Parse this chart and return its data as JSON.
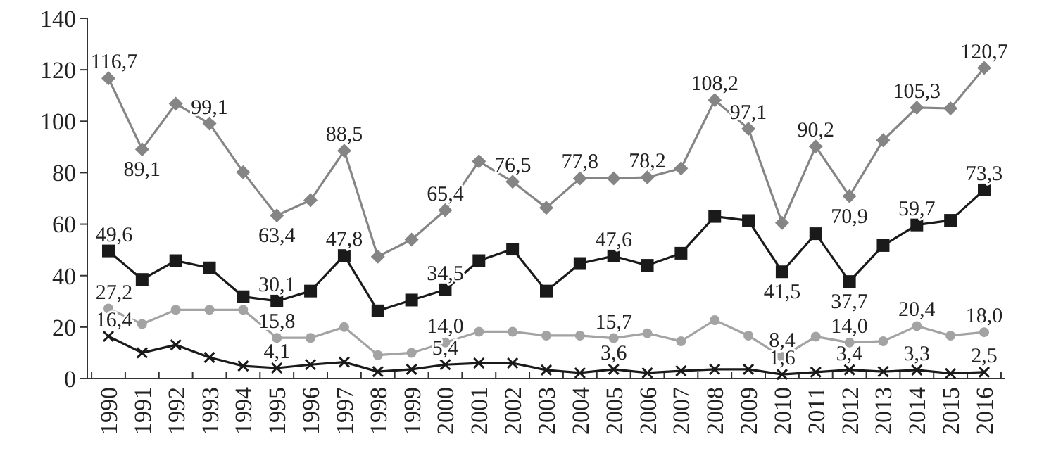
{
  "chart_data": {
    "type": "line",
    "categories": [
      "1990",
      "1991",
      "1992",
      "1993",
      "1994",
      "1995",
      "1996",
      "1997",
      "1998",
      "1999",
      "2000",
      "2001",
      "2002",
      "2003",
      "2004",
      "2005",
      "2006",
      "2007",
      "2008",
      "2009",
      "2010",
      "2011",
      "2012",
      "2013",
      "2014",
      "2015",
      "2016"
    ],
    "ylim": [
      0,
      140
    ],
    "yticks": [
      0,
      20,
      40,
      60,
      80,
      100,
      120,
      140
    ],
    "grid": false,
    "series": [
      {
        "color": "#858585",
        "marker": "diamond",
        "values": [
          116.7,
          89.1,
          106.8,
          99.1,
          80.2,
          63.4,
          69.3,
          88.5,
          47.4,
          54,
          65.4,
          84.4,
          76.5,
          66.4,
          77.8,
          77.8,
          78.2,
          81.7,
          108.2,
          97.1,
          60.5,
          90.2,
          70.9,
          92.6,
          105.3,
          105,
          120.7
        ],
        "value_labels": [
          "116,7",
          "89,1",
          null,
          "99,1",
          null,
          "63,4",
          null,
          "88,5",
          null,
          null,
          "65,4",
          null,
          "76,5",
          null,
          "77,8",
          null,
          "78,2",
          null,
          "108,2",
          "97,1",
          null,
          "90,2",
          "70,9",
          null,
          "105,3",
          null,
          "120,7"
        ]
      },
      {
        "color": "#1a1a1a",
        "marker": "square",
        "values": [
          49.6,
          38.5,
          45.8,
          43,
          31.8,
          30.1,
          34,
          47.8,
          26.3,
          30.5,
          34.5,
          45.8,
          50.3,
          34,
          44.7,
          47.6,
          44,
          48.7,
          63,
          61.4,
          41.5,
          56.3,
          37.7,
          51.7,
          59.7,
          61.5,
          73.3
        ],
        "value_labels": [
          "49,6",
          null,
          null,
          null,
          null,
          "30,1",
          null,
          "47,8",
          null,
          null,
          "34,5",
          null,
          null,
          null,
          null,
          "47,6",
          null,
          null,
          null,
          null,
          "41,5",
          null,
          "37,7",
          null,
          "59,7",
          null,
          "73,3"
        ]
      },
      {
        "color": "#a3a3a3",
        "marker": "circle",
        "values": [
          27.2,
          21.2,
          26.7,
          26.7,
          26.7,
          15.8,
          15.8,
          20,
          9.1,
          10,
          14,
          18.2,
          18.2,
          16.7,
          16.7,
          15.7,
          17.6,
          14.5,
          22.7,
          16.7,
          8.4,
          16.3,
          14,
          14.5,
          20.4,
          16.7,
          18
        ],
        "value_labels": [
          "27,2",
          null,
          null,
          null,
          null,
          "15,8",
          null,
          null,
          null,
          null,
          "14,0",
          null,
          null,
          null,
          null,
          "15,7",
          null,
          null,
          null,
          null,
          "8,4",
          null,
          "14,0",
          null,
          "20,4",
          null,
          "18,0"
        ]
      },
      {
        "color": "#1a1a1a",
        "marker": "cross",
        "values": [
          16.4,
          10,
          13.1,
          8.2,
          4.9,
          4.1,
          5.4,
          6.4,
          2.7,
          3.6,
          5.4,
          6,
          6,
          3.3,
          2.2,
          3.6,
          2.2,
          3,
          3.6,
          3.6,
          1.6,
          2.5,
          3.4,
          2.7,
          3.3,
          2,
          2.5
        ],
        "value_labels": [
          "16,4",
          null,
          null,
          null,
          null,
          "4,1",
          null,
          null,
          null,
          null,
          "5,4",
          null,
          null,
          null,
          null,
          "3,6",
          null,
          null,
          null,
          null,
          "1,6",
          null,
          "3,4",
          null,
          "3,3",
          null,
          "2,5"
        ]
      }
    ]
  }
}
